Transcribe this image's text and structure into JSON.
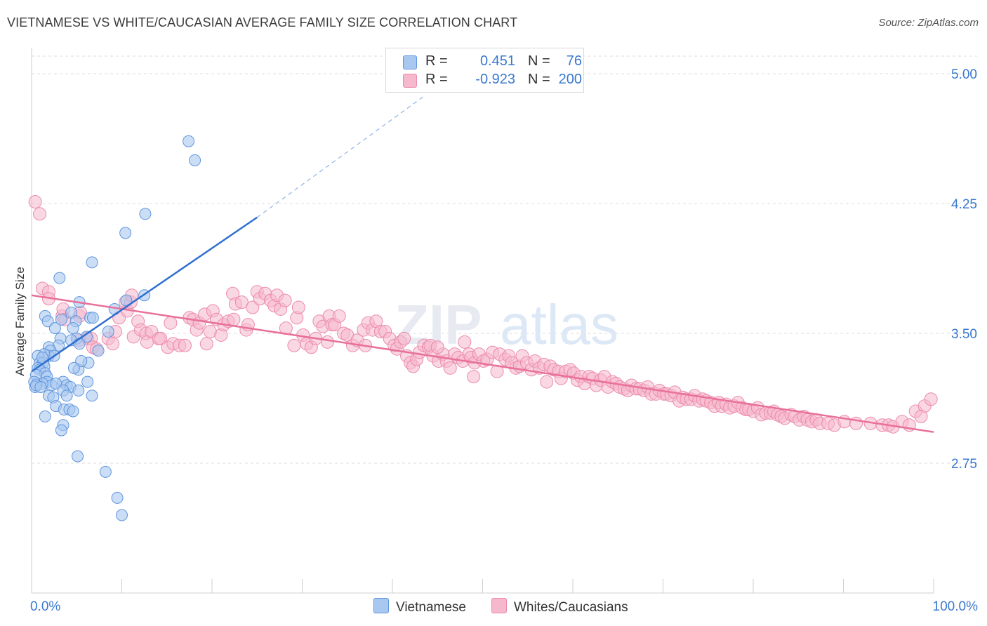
{
  "header": {
    "title": "VIETNAMESE VS WHITE/CAUCASIAN AVERAGE FAMILY SIZE CORRELATION CHART",
    "source": "Source: ZipAtlas.com"
  },
  "legend": {
    "rows": [
      {
        "r_label": "R =",
        "r_value": "0.451",
        "n_label": "N =",
        "n_value": "76"
      },
      {
        "r_label": "R =",
        "r_value": "-0.923",
        "n_label": "N =",
        "n_value": "200"
      }
    ]
  },
  "bottom_legend": {
    "items": [
      "Vietnamese",
      "Whites/Caucasians"
    ]
  },
  "watermark": {
    "zip": "ZIP",
    "atlas": "atlas"
  },
  "colors": {
    "blue_fill": "#a9c8f0",
    "blue_stroke": "#5f95de",
    "blue_line": "#2f6fd0",
    "pink_fill": "#f6b8cc",
    "pink_stroke": "#ec8aab",
    "pink_line": "#e8709a",
    "axis_label": "#3a78d0",
    "grid": "#dedede"
  },
  "chart_data": {
    "type": "scatter",
    "title": "VIETNAMESE VS WHITE/CAUCASIAN AVERAGE FAMILY SIZE CORRELATION CHART",
    "xlabel": "",
    "ylabel": "Average Family Size",
    "xlim": [
      0,
      100
    ],
    "ylim": [
      2.0,
      5.15
    ],
    "x_tick_labels": [
      "0.0%",
      "100.0%"
    ],
    "y_ticks": [
      2.75,
      3.5,
      4.25,
      5.0
    ],
    "y_tick_labels": [
      "2.75",
      "3.50",
      "4.25",
      "5.00"
    ],
    "grid": true,
    "series": [
      {
        "name": "Vietnamese",
        "color": "#a9c8f0",
        "trend": {
          "x": [
            0,
            25
          ],
          "y": [
            3.28,
            4.17
          ],
          "dashed_to": [
            43.5,
            4.87
          ]
        },
        "points": [
          [
            17.4,
            4.61
          ],
          [
            18.1,
            4.5
          ],
          [
            12.6,
            4.19
          ],
          [
            10.4,
            4.08
          ],
          [
            6.7,
            3.91
          ],
          [
            3.1,
            3.82
          ],
          [
            12.5,
            3.72
          ],
          [
            10.5,
            3.69
          ],
          [
            5.3,
            3.68
          ],
          [
            1.5,
            3.6
          ],
          [
            4.4,
            3.62
          ],
          [
            6.5,
            3.59
          ],
          [
            3.3,
            3.58
          ],
          [
            4.9,
            3.57
          ],
          [
            6.8,
            3.59
          ],
          [
            1.8,
            3.57
          ],
          [
            2.6,
            3.53
          ],
          [
            8.5,
            3.51
          ],
          [
            4.6,
            3.53
          ],
          [
            6.1,
            3.48
          ],
          [
            3.2,
            3.47
          ],
          [
            5.0,
            3.47
          ],
          [
            4.4,
            3.46
          ],
          [
            5.3,
            3.44
          ],
          [
            3.0,
            3.43
          ],
          [
            1.9,
            3.42
          ],
          [
            2.1,
            3.4
          ],
          [
            7.4,
            3.4
          ],
          [
            1.9,
            3.37
          ],
          [
            2.5,
            3.37
          ],
          [
            1.4,
            3.38
          ],
          [
            0.7,
            3.37
          ],
          [
            0.9,
            3.33
          ],
          [
            1.3,
            3.33
          ],
          [
            1.4,
            3.31
          ],
          [
            5.2,
            3.29
          ],
          [
            0.7,
            3.3
          ],
          [
            0.9,
            3.29
          ],
          [
            1.5,
            3.27
          ],
          [
            1.7,
            3.25
          ],
          [
            0.5,
            3.26
          ],
          [
            6.3,
            3.33
          ],
          [
            5.5,
            3.34
          ],
          [
            4.7,
            3.3
          ],
          [
            1.7,
            3.22
          ],
          [
            0.6,
            3.21
          ],
          [
            2.2,
            3.2
          ],
          [
            3.5,
            3.22
          ],
          [
            2.7,
            3.21
          ],
          [
            1.2,
            3.21
          ],
          [
            0.3,
            3.22
          ],
          [
            6.2,
            3.22
          ],
          [
            0.4,
            3.19
          ],
          [
            0.5,
            3.2
          ],
          [
            1.0,
            3.19
          ],
          [
            3.9,
            3.2
          ],
          [
            4.3,
            3.19
          ],
          [
            3.5,
            3.17
          ],
          [
            5.2,
            3.17
          ],
          [
            3.9,
            3.14
          ],
          [
            1.9,
            3.14
          ],
          [
            2.4,
            3.13
          ],
          [
            6.7,
            3.14
          ],
          [
            2.7,
            3.08
          ],
          [
            3.6,
            3.06
          ],
          [
            4.2,
            3.06
          ],
          [
            4.6,
            3.05
          ],
          [
            1.5,
            3.02
          ],
          [
            3.5,
            2.97
          ],
          [
            3.3,
            2.94
          ],
          [
            5.1,
            2.79
          ],
          [
            8.2,
            2.7
          ],
          [
            9.5,
            2.55
          ],
          [
            10.0,
            2.45
          ],
          [
            9.2,
            3.64
          ],
          [
            1.2,
            3.36
          ]
        ]
      },
      {
        "name": "Whites/Caucasians",
        "color": "#f6b8cc",
        "trend": {
          "x": [
            0,
            100
          ],
          "y": [
            3.72,
            2.93
          ]
        },
        "points": [
          [
            0.4,
            4.26
          ],
          [
            0.9,
            4.19
          ],
          [
            1.2,
            3.76
          ],
          [
            1.9,
            3.74
          ],
          [
            1.9,
            3.7
          ],
          [
            3.4,
            3.6
          ],
          [
            3.5,
            3.64
          ],
          [
            3.7,
            3.58
          ],
          [
            5.3,
            3.6
          ],
          [
            5.4,
            3.62
          ],
          [
            5.2,
            3.46
          ],
          [
            6.2,
            3.47
          ],
          [
            6.6,
            3.47
          ],
          [
            6.8,
            3.42
          ],
          [
            7.2,
            3.41
          ],
          [
            8.5,
            3.47
          ],
          [
            9.3,
            3.51
          ],
          [
            9.7,
            3.59
          ],
          [
            9.0,
            3.44
          ],
          [
            10.4,
            3.68
          ],
          [
            10.6,
            3.63
          ],
          [
            11.0,
            3.68
          ],
          [
            11.1,
            3.72
          ],
          [
            11.3,
            3.48
          ],
          [
            11.8,
            3.57
          ],
          [
            12.1,
            3.52
          ],
          [
            12.7,
            3.5
          ],
          [
            12.8,
            3.45
          ],
          [
            13.3,
            3.51
          ],
          [
            14.1,
            3.47
          ],
          [
            14.3,
            3.47
          ],
          [
            15.1,
            3.42
          ],
          [
            15.4,
            3.56
          ],
          [
            15.7,
            3.44
          ],
          [
            16.4,
            3.43
          ],
          [
            17.0,
            3.43
          ],
          [
            17.5,
            3.59
          ],
          [
            17.9,
            3.58
          ],
          [
            18.3,
            3.52
          ],
          [
            18.6,
            3.56
          ],
          [
            19.2,
            3.61
          ],
          [
            19.4,
            3.44
          ],
          [
            19.8,
            3.51
          ],
          [
            20.1,
            3.63
          ],
          [
            20.5,
            3.58
          ],
          [
            21.0,
            3.49
          ],
          [
            21.3,
            3.55
          ],
          [
            21.8,
            3.57
          ],
          [
            22.3,
            3.73
          ],
          [
            22.4,
            3.58
          ],
          [
            22.6,
            3.67
          ],
          [
            23.3,
            3.68
          ],
          [
            23.8,
            3.52
          ],
          [
            24.0,
            3.55
          ],
          [
            24.5,
            3.65
          ],
          [
            25.0,
            3.74
          ],
          [
            25.3,
            3.7
          ],
          [
            25.9,
            3.73
          ],
          [
            26.5,
            3.69
          ],
          [
            26.9,
            3.66
          ],
          [
            27.2,
            3.72
          ],
          [
            27.6,
            3.64
          ],
          [
            28.1,
            3.69
          ],
          [
            28.2,
            3.53
          ],
          [
            29.1,
            3.43
          ],
          [
            29.4,
            3.59
          ],
          [
            29.6,
            3.65
          ],
          [
            30.1,
            3.49
          ],
          [
            30.5,
            3.44
          ],
          [
            31.0,
            3.42
          ],
          [
            31.5,
            3.47
          ],
          [
            31.9,
            3.57
          ],
          [
            32.3,
            3.54
          ],
          [
            32.8,
            3.45
          ],
          [
            33.0,
            3.6
          ],
          [
            33.3,
            3.55
          ],
          [
            33.6,
            3.55
          ],
          [
            34.1,
            3.6
          ],
          [
            34.6,
            3.5
          ],
          [
            35.0,
            3.49
          ],
          [
            35.6,
            3.43
          ],
          [
            36.1,
            3.46
          ],
          [
            36.8,
            3.52
          ],
          [
            37.0,
            3.43
          ],
          [
            37.3,
            3.56
          ],
          [
            37.8,
            3.52
          ],
          [
            38.2,
            3.57
          ],
          [
            38.7,
            3.51
          ],
          [
            39.2,
            3.51
          ],
          [
            39.7,
            3.47
          ],
          [
            40.2,
            3.43
          ],
          [
            40.5,
            3.41
          ],
          [
            40.9,
            3.45
          ],
          [
            41.3,
            3.47
          ],
          [
            41.6,
            3.37
          ],
          [
            42.0,
            3.33
          ],
          [
            42.3,
            3.31
          ],
          [
            42.7,
            3.35
          ],
          [
            43.0,
            3.39
          ],
          [
            43.5,
            3.43
          ],
          [
            44.0,
            3.42
          ],
          [
            44.2,
            3.43
          ],
          [
            44.5,
            3.37
          ],
          [
            45.1,
            3.34
          ],
          [
            45.6,
            3.38
          ],
          [
            46.0,
            3.34
          ],
          [
            46.4,
            3.3
          ],
          [
            46.9,
            3.38
          ],
          [
            47.3,
            3.36
          ],
          [
            47.8,
            3.34
          ],
          [
            48.0,
            3.45
          ],
          [
            48.5,
            3.38
          ],
          [
            48.7,
            3.36
          ],
          [
            49.1,
            3.33
          ],
          [
            49.6,
            3.38
          ],
          [
            50.1,
            3.34
          ],
          [
            50.5,
            3.35
          ],
          [
            51.1,
            3.39
          ],
          [
            51.6,
            3.28
          ],
          [
            51.9,
            3.38
          ],
          [
            52.5,
            3.35
          ],
          [
            52.9,
            3.37
          ],
          [
            53.2,
            3.33
          ],
          [
            53.7,
            3.3
          ],
          [
            54.1,
            3.31
          ],
          [
            54.4,
            3.37
          ],
          [
            54.9,
            3.33
          ],
          [
            55.4,
            3.29
          ],
          [
            55.8,
            3.34
          ],
          [
            56.3,
            3.3
          ],
          [
            56.8,
            3.32
          ],
          [
            57.1,
            3.22
          ],
          [
            57.5,
            3.31
          ],
          [
            57.9,
            3.29
          ],
          [
            58.4,
            3.28
          ],
          [
            58.7,
            3.24
          ],
          [
            59.2,
            3.28
          ],
          [
            59.7,
            3.29
          ],
          [
            60.1,
            3.27
          ],
          [
            60.5,
            3.23
          ],
          [
            60.9,
            3.25
          ],
          [
            61.3,
            3.21
          ],
          [
            61.8,
            3.25
          ],
          [
            62.2,
            3.24
          ],
          [
            62.6,
            3.2
          ],
          [
            63.1,
            3.23
          ],
          [
            63.5,
            3.25
          ],
          [
            63.9,
            3.19
          ],
          [
            64.4,
            3.22
          ],
          [
            64.8,
            3.21
          ],
          [
            65.2,
            3.19
          ],
          [
            65.7,
            3.18
          ],
          [
            66.1,
            3.17
          ],
          [
            66.5,
            3.2
          ],
          [
            67.0,
            3.18
          ],
          [
            67.4,
            3.18
          ],
          [
            67.9,
            3.17
          ],
          [
            68.3,
            3.19
          ],
          [
            68.7,
            3.15
          ],
          [
            69.2,
            3.15
          ],
          [
            69.6,
            3.17
          ],
          [
            70.1,
            3.15
          ],
          [
            70.4,
            3.15
          ],
          [
            70.9,
            3.14
          ],
          [
            71.3,
            3.16
          ],
          [
            71.8,
            3.11
          ],
          [
            72.2,
            3.13
          ],
          [
            72.6,
            3.12
          ],
          [
            73.1,
            3.12
          ],
          [
            73.5,
            3.14
          ],
          [
            74.0,
            3.11
          ],
          [
            74.4,
            3.12
          ],
          [
            74.8,
            3.11
          ],
          [
            75.3,
            3.1
          ],
          [
            75.7,
            3.08
          ],
          [
            76.2,
            3.1
          ],
          [
            76.5,
            3.08
          ],
          [
            77.0,
            3.09
          ],
          [
            77.4,
            3.07
          ],
          [
            77.9,
            3.08
          ],
          [
            78.3,
            3.1
          ],
          [
            78.8,
            3.07
          ],
          [
            79.2,
            3.06
          ],
          [
            79.5,
            3.06
          ],
          [
            80.0,
            3.05
          ],
          [
            80.5,
            3.07
          ],
          [
            80.9,
            3.03
          ],
          [
            81.4,
            3.04
          ],
          [
            81.9,
            3.04
          ],
          [
            82.3,
            3.05
          ],
          [
            82.7,
            3.03
          ],
          [
            83.1,
            3.02
          ],
          [
            83.5,
            3.01
          ],
          [
            84.2,
            3.03
          ],
          [
            84.6,
            3.02
          ],
          [
            85.1,
            3.0
          ],
          [
            85.6,
            3.02
          ],
          [
            86.0,
            3.0
          ],
          [
            86.5,
            2.99
          ],
          [
            87.0,
            3.0
          ],
          [
            87.4,
            2.98
          ],
          [
            88.3,
            2.98
          ],
          [
            89.0,
            2.97
          ],
          [
            90.1,
            2.99
          ],
          [
            91.4,
            2.98
          ],
          [
            93.0,
            2.98
          ],
          [
            94.3,
            2.97
          ],
          [
            95.0,
            2.97
          ],
          [
            95.5,
            2.96
          ],
          [
            96.5,
            2.99
          ],
          [
            98.0,
            3.05
          ],
          [
            99.0,
            3.08
          ],
          [
            99.7,
            3.12
          ],
          [
            98.6,
            3.02
          ],
          [
            97.3,
            2.97
          ],
          [
            49.0,
            3.25
          ],
          [
            45.0,
            3.42
          ]
        ]
      }
    ]
  }
}
